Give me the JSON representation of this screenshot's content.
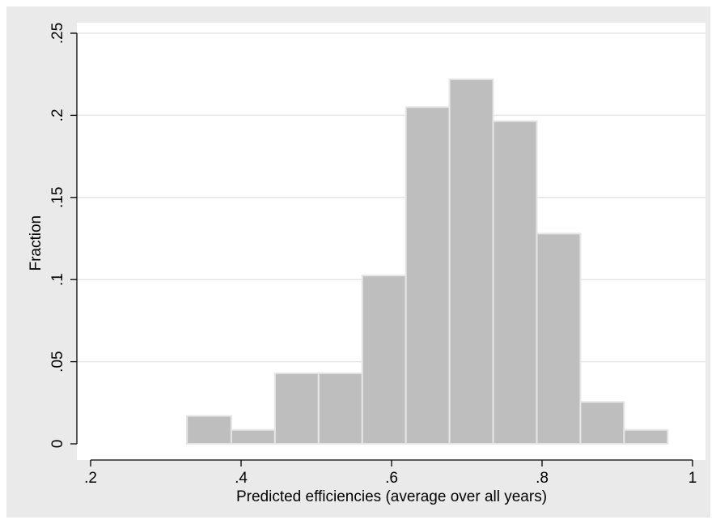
{
  "chart_data": {
    "type": "bar",
    "histogram": true,
    "title": "",
    "xlabel": "Predicted efficiencies (average over all years)",
    "ylabel": "Fraction",
    "xlim": [
      0.2,
      1.0
    ],
    "ylim": [
      0,
      0.25
    ],
    "x_ticks": [
      {
        "value": 0.2,
        "label": ".2"
      },
      {
        "value": 0.4,
        "label": ".4"
      },
      {
        "value": 0.6,
        "label": ".6"
      },
      {
        "value": 0.8,
        "label": ".8"
      },
      {
        "value": 1.0,
        "label": "1"
      }
    ],
    "y_ticks": [
      {
        "value": 0,
        "label": "0"
      },
      {
        "value": 0.05,
        "label": ".05"
      },
      {
        "value": 0.1,
        "label": ".1"
      },
      {
        "value": 0.15,
        "label": ".15"
      },
      {
        "value": 0.2,
        "label": ".2"
      },
      {
        "value": 0.25,
        "label": ".25"
      }
    ],
    "grid": true,
    "bins": [
      {
        "x0": 0.328,
        "x1": 0.387,
        "value": 0.017
      },
      {
        "x0": 0.387,
        "x1": 0.445,
        "value": 0.0085
      },
      {
        "x0": 0.445,
        "x1": 0.503,
        "value": 0.043
      },
      {
        "x0": 0.503,
        "x1": 0.561,
        "value": 0.043
      },
      {
        "x0": 0.561,
        "x1": 0.619,
        "value": 0.1025
      },
      {
        "x0": 0.619,
        "x1": 0.677,
        "value": 0.205
      },
      {
        "x0": 0.677,
        "x1": 0.735,
        "value": 0.222
      },
      {
        "x0": 0.735,
        "x1": 0.793,
        "value": 0.1965
      },
      {
        "x0": 0.793,
        "x1": 0.851,
        "value": 0.128
      },
      {
        "x0": 0.851,
        "x1": 0.909,
        "value": 0.0255
      },
      {
        "x0": 0.909,
        "x1": 0.967,
        "value": 0.0085
      }
    ],
    "colors": {
      "outer_background": "#eaeaea",
      "plot_background": "#ffffff",
      "bar_fill": "#bebebe",
      "bar_stroke": "#e6e6e6",
      "grid": "#e6e6e6",
      "axis": "#000000"
    }
  }
}
